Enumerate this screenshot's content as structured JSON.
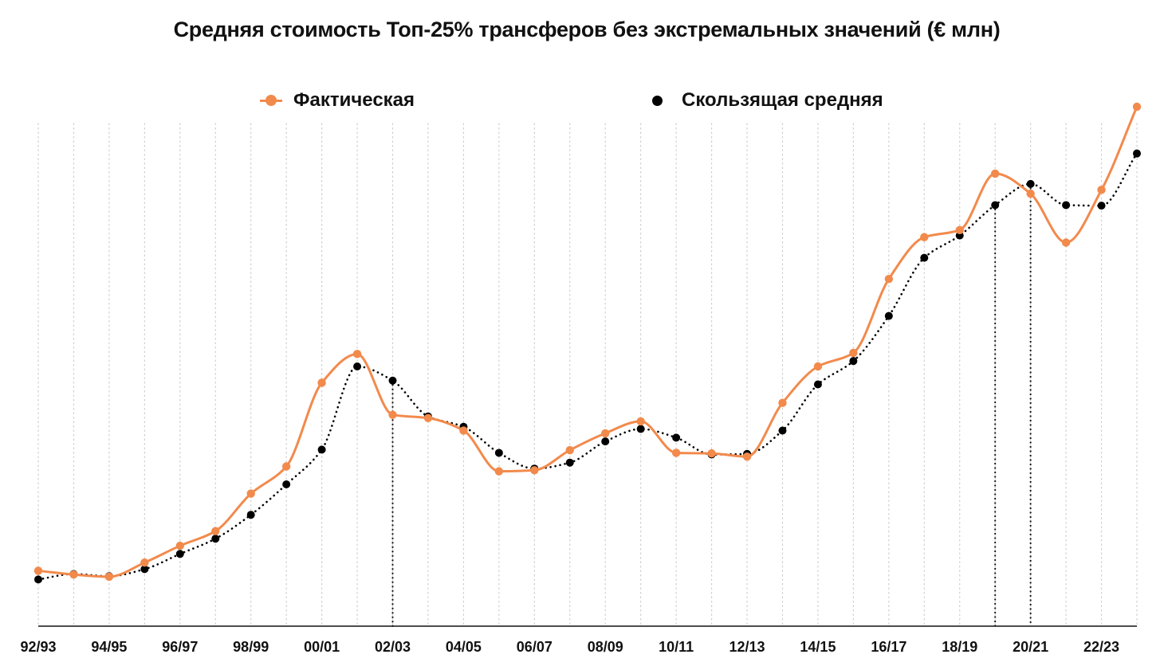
{
  "chart_data": {
    "type": "line",
    "title": "Средняя стоимость Топ-25% трансферов без экстремальных значений (€ млн)",
    "xlabel": "",
    "ylabel": "",
    "categories": [
      "92/93",
      "93/94",
      "94/95",
      "95/96",
      "96/97",
      "97/98",
      "98/99",
      "99/00",
      "00/01",
      "01/02",
      "02/03",
      "03/04",
      "04/05",
      "05/06",
      "06/07",
      "07/08",
      "08/09",
      "09/10",
      "10/11",
      "11/12",
      "12/13",
      "13/14",
      "14/15",
      "15/16",
      "16/17",
      "17/18",
      "18/19",
      "19/20",
      "20/21",
      "21/22",
      "22/23",
      "23/24"
    ],
    "tick_labels": [
      "92/93",
      "94/95",
      "96/97",
      "98/99",
      "00/01",
      "02/03",
      "04/05",
      "06/07",
      "08/09",
      "10/11",
      "12/13",
      "14/15",
      "16/17",
      "18/19",
      "20/21",
      "22/23"
    ],
    "series": [
      {
        "name": "Фактическая",
        "color": "#f28a4c",
        "style": "solid-smooth-with-markers",
        "values": [
          0.52,
          0.45,
          0.41,
          0.67,
          0.98,
          1.25,
          1.94,
          2.44,
          3.98,
          4.51,
          3.39,
          3.33,
          3.1,
          2.35,
          2.37,
          2.74,
          3.05,
          3.27,
          2.69,
          2.68,
          2.62,
          3.61,
          4.28,
          4.53,
          5.89,
          6.66,
          6.79,
          7.83,
          7.46,
          6.56,
          7.53,
          9.06
        ]
      },
      {
        "name": "Скользящая средняя",
        "color": "#000000",
        "style": "dotted-smooth-with-markers",
        "values": [
          0.36,
          0.46,
          0.42,
          0.55,
          0.83,
          1.11,
          1.55,
          2.11,
          2.75,
          4.28,
          4.02,
          3.36,
          3.17,
          2.69,
          2.4,
          2.51,
          2.9,
          3.13,
          2.97,
          2.66,
          2.67,
          3.1,
          3.95,
          4.38,
          5.21,
          6.28,
          6.69,
          7.25,
          7.64,
          7.25,
          7.24,
          8.2
        ]
      }
    ],
    "ylim": [
      -0.5,
      9.5
    ],
    "grid": "vertical-dotted",
    "legend_position": "top",
    "annotations": [
      {
        "type": "vertical-dotted-line",
        "category": "02/03",
        "series": "Скользящая средняя"
      },
      {
        "type": "vertical-dotted-line",
        "category": "19/20",
        "series": "Скользящая средняя"
      },
      {
        "type": "vertical-dotted-line",
        "category": "20/21",
        "series": "Скользящая средняя"
      }
    ]
  }
}
